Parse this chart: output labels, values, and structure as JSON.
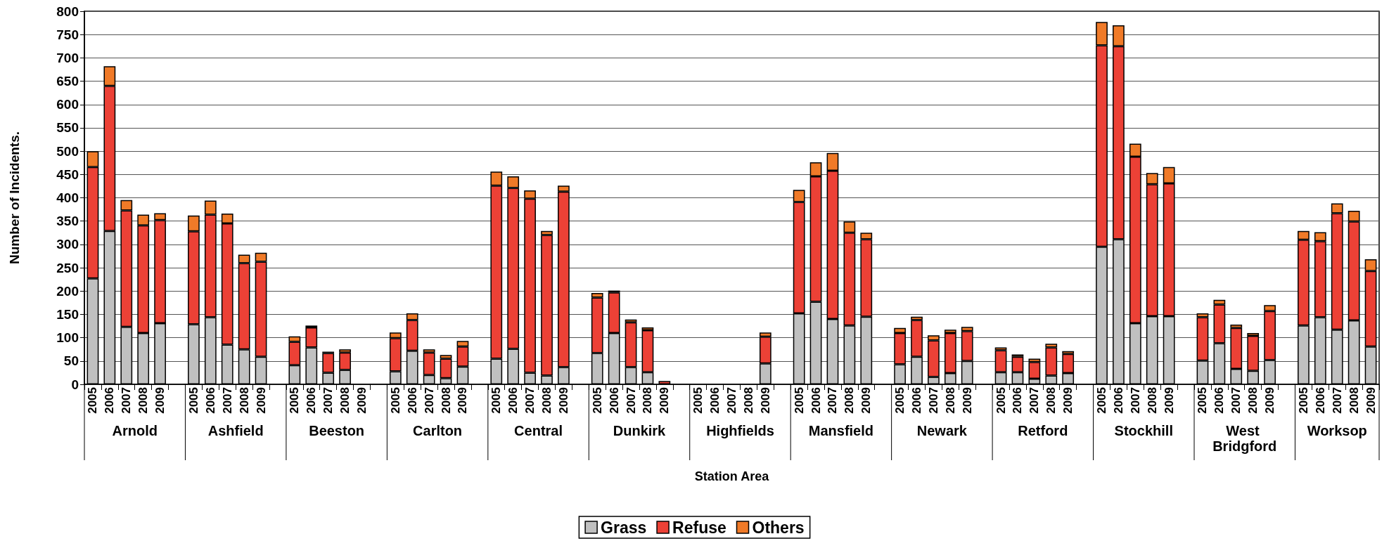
{
  "chart_data": {
    "type": "bar",
    "xlabel": "Station Area",
    "ylabel": "Number of Incidents.",
    "categories": [
      "2005",
      "2006",
      "2007",
      "2008",
      "2009",
      null,
      "2005",
      "2006",
      "2007",
      "2008",
      "2009",
      null,
      "2005",
      "2006",
      "2007",
      "2008",
      "2009",
      null,
      "2005",
      "2006",
      "2007",
      "2008",
      "2009",
      null,
      "2005",
      "2006",
      "2007",
      "2008",
      "2009",
      null,
      "2005",
      "2006",
      "2007",
      "2008",
      "2009",
      null,
      "2005",
      "2006",
      "2007",
      "2008",
      "2009",
      null,
      "2005",
      "2006",
      "2007",
      "2008",
      "2009",
      null,
      "2005",
      "2006",
      "2007",
      "2008",
      "2009",
      null,
      "2005",
      "2006",
      "2007",
      "2008",
      "2009",
      null,
      "2005",
      "2006",
      "2007",
      "2008",
      "2009",
      null,
      "2005",
      "2006",
      "2007",
      "2008",
      "2009",
      null,
      "2005",
      "2006",
      "2007",
      "2008",
      "2009"
    ],
    "series": [
      {
        "name": "Grass",
        "color": "#c0c0c0",
        "values": [
          227,
          329,
          123,
          110,
          131,
          null,
          129,
          144,
          85,
          75,
          59,
          null,
          41,
          79,
          25,
          31,
          null,
          null,
          28,
          72,
          20,
          13,
          38,
          null,
          55,
          76,
          25,
          19,
          37,
          null,
          67,
          110,
          37,
          26,
          null,
          null,
          null,
          null,
          null,
          null,
          45,
          null,
          152,
          177,
          140,
          126,
          145,
          null,
          43,
          59,
          16,
          24,
          50,
          null,
          26,
          26,
          12,
          19,
          24,
          null,
          295,
          311,
          131,
          146,
          146,
          null,
          51,
          88,
          33,
          29,
          52,
          null,
          126,
          144,
          117,
          137,
          81
        ]
      },
      {
        "name": "Refuse",
        "color": "#ec4136",
        "values": [
          239,
          311,
          250,
          231,
          221,
          null,
          199,
          220,
          260,
          185,
          204,
          null,
          50,
          43,
          42,
          37,
          null,
          null,
          71,
          66,
          48,
          42,
          43,
          null,
          371,
          345,
          373,
          301,
          376,
          null,
          119,
          87,
          96,
          90,
          7,
          null,
          null,
          null,
          null,
          null,
          57,
          null,
          239,
          269,
          318,
          199,
          166,
          null,
          67,
          79,
          78,
          86,
          64,
          null,
          47,
          33,
          36,
          60,
          41,
          null,
          432,
          414,
          357,
          283,
          285,
          null,
          93,
          83,
          88,
          75,
          105,
          null,
          184,
          163,
          250,
          212,
          162
        ]
      },
      {
        "name": "Others",
        "color": "#f07a28",
        "values": [
          34,
          42,
          22,
          23,
          15,
          null,
          34,
          30,
          21,
          18,
          19,
          null,
          12,
          4,
          3,
          7,
          null,
          null,
          12,
          14,
          7,
          8,
          12,
          null,
          30,
          25,
          18,
          9,
          13,
          null,
          10,
          4,
          6,
          6,
          null,
          null,
          null,
          null,
          null,
          null,
          9,
          null,
          26,
          30,
          38,
          24,
          14,
          null,
          11,
          7,
          11,
          7,
          9,
          null,
          6,
          5,
          7,
          8,
          6,
          null,
          50,
          45,
          28,
          24,
          35,
          null,
          8,
          10,
          7,
          6,
          13,
          null,
          19,
          19,
          21,
          23,
          25
        ]
      }
    ],
    "stacked": true,
    "ylim": [
      0,
      800
    ],
    "yticks": [
      0,
      50,
      100,
      150,
      200,
      250,
      300,
      350,
      400,
      450,
      500,
      550,
      600,
      650,
      700,
      750,
      800
    ],
    "grid": "y",
    "legend": "bottom",
    "annotations": [
      "Arnold",
      "Ashfield",
      "Beeston",
      "Carlton",
      "Central",
      "Dunkirk",
      "Highfields",
      "Mansfield",
      "Newark",
      "Retford",
      "Stockhill",
      "West Bridgford",
      "Worksop"
    ]
  }
}
